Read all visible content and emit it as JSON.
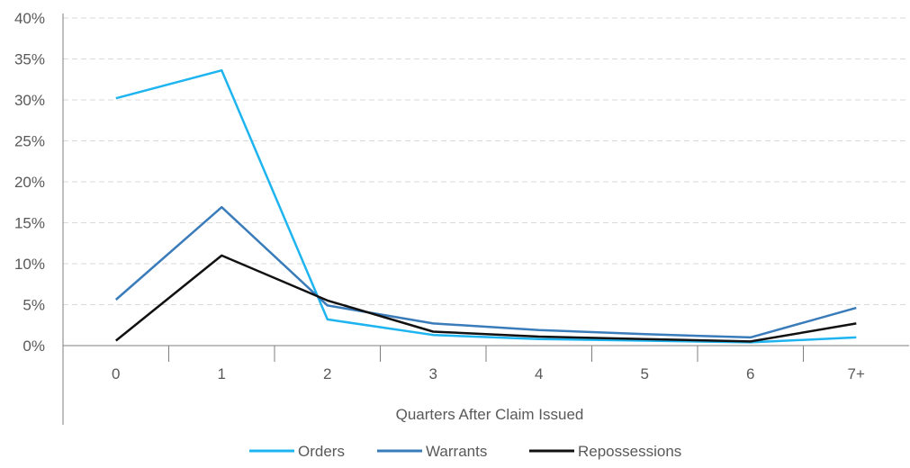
{
  "chart_data": {
    "type": "line",
    "title": "",
    "xlabel": "Quarters After Claim Issued",
    "ylabel": "",
    "categories": [
      "0",
      "1",
      "2",
      "3",
      "4",
      "5",
      "6",
      "7+"
    ],
    "ylim": [
      0,
      40
    ],
    "yticks": [
      "0%",
      "5%",
      "10%",
      "15%",
      "20%",
      "25%",
      "30%",
      "35%",
      "40%"
    ],
    "grid": true,
    "legend_position": "bottom",
    "series": [
      {
        "name": "Orders",
        "color": "#1EB4F0",
        "values": [
          30.2,
          33.6,
          3.2,
          1.3,
          0.8,
          0.6,
          0.4,
          1.0
        ]
      },
      {
        "name": "Warrants",
        "color": "#3A7CBA",
        "values": [
          5.6,
          16.9,
          4.9,
          2.7,
          1.9,
          1.4,
          1.0,
          4.6
        ]
      },
      {
        "name": "Repossessions",
        "color": "#111111",
        "values": [
          0.6,
          11.0,
          5.5,
          1.7,
          1.1,
          0.8,
          0.5,
          2.7
        ]
      }
    ]
  }
}
